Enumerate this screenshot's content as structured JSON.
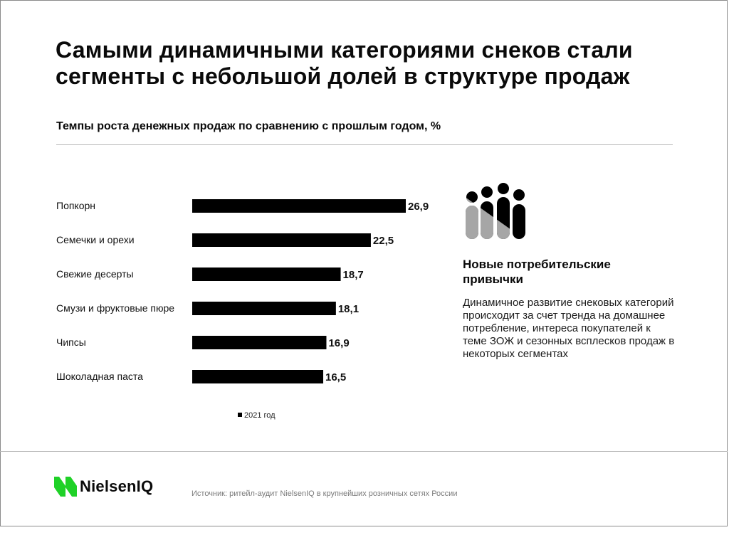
{
  "header": {
    "title": "Самыми динамичными категориями снеков стали сегменты с небольшой долей в структуре продаж",
    "subtitle": "Темпы роста денежных продаж по сравнению с прошлым годом, %"
  },
  "chart_data": {
    "type": "bar",
    "orientation": "horizontal",
    "categories": [
      "Попкорн",
      "Семечки и орехи",
      "Свежие десерты",
      "Смузи и фруктовые пюре",
      "Чипсы",
      "Шоколадная паста"
    ],
    "series": [
      {
        "name": "2021 год",
        "values": [
          26.9,
          22.5,
          18.7,
          18.1,
          16.9,
          16.5
        ],
        "labels": [
          "26,9",
          "22,5",
          "18,7",
          "18,1",
          "16,9",
          "16,5"
        ],
        "color": "#000000"
      }
    ],
    "legend": "bottom-center",
    "grid": false
  },
  "insight": {
    "icon": "people-icon",
    "title": "Новые потребительские привычки",
    "text": "Динамичное развитие снековых категорий происходит за счет тренда на домашнее потребление, интереса покупателей к теме ЗОЖ и сезонных всплесков продаж в некоторых сегментах"
  },
  "footer": {
    "logo_text": "NielsenIQ",
    "logo_color": "#1fd127",
    "source": "Источник:  ритейл-аудит NielsenIQ в крупнейших розничных сетях России"
  }
}
